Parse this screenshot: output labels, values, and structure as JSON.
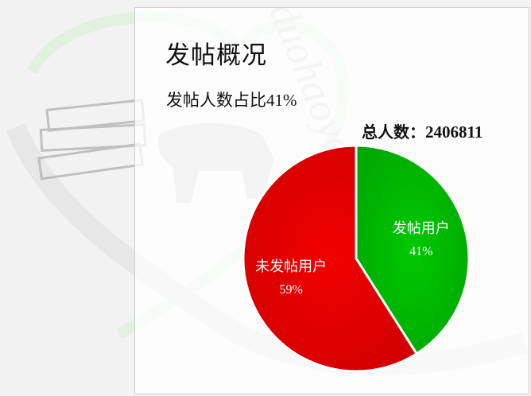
{
  "page": {
    "title": "发帖概况",
    "subtitle_prefix": "发帖人数占比",
    "subtitle_value": "41%",
    "total_label": "总人数：",
    "total_value": "2406811"
  },
  "chart_data": {
    "type": "pie",
    "title": "",
    "slices": [
      {
        "label": "发帖用户",
        "value": 41,
        "display": "41%",
        "color": "#00b400"
      },
      {
        "label": "未发帖用户",
        "value": 59,
        "display": "59%",
        "color": "#e60000"
      }
    ],
    "legend": "none"
  },
  "watermark": {
    "text": "duohaoyou",
    "color": "#d6e9d2"
  }
}
